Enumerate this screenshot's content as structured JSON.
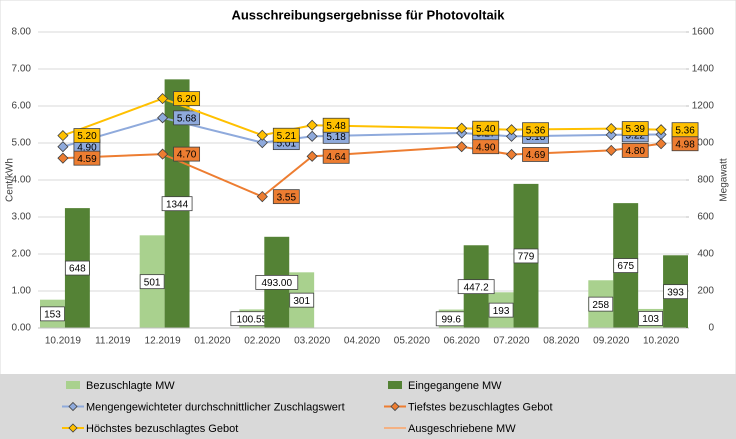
{
  "chart_data": {
    "type": "combo",
    "title": "Ausschreibungsergebnisse für Photovoltaik",
    "y_label": "Cent/kWh",
    "y2_label": "Megawatt",
    "connect_gaps": true,
    "categories": [
      "10.2019",
      "11.2019",
      "12.2019",
      "01.2020",
      "02.2020",
      "03.2020",
      "04.2020",
      "05.2020",
      "06.2020",
      "07.2020",
      "08.2020",
      "09.2020",
      "10.2020"
    ],
    "ylim": [
      0,
      8
    ],
    "yticks": [
      {
        "value": 0,
        "label": "0.00"
      },
      {
        "value": 1,
        "label": "1.00"
      },
      {
        "value": 2,
        "label": "2.00"
      },
      {
        "value": 3,
        "label": "3.00"
      },
      {
        "value": 4,
        "label": "4.00"
      },
      {
        "value": 5,
        "label": "5.00"
      },
      {
        "value": 6,
        "label": "6.00"
      },
      {
        "value": 7,
        "label": "7.00"
      },
      {
        "value": 8,
        "label": "8.00"
      }
    ],
    "y2lim": [
      0,
      1600
    ],
    "y2ticks": [
      0,
      200,
      400,
      600,
      800,
      1000,
      1200,
      1400,
      1600
    ],
    "series": [
      {
        "name": "Bezuschlagte MW",
        "type": "bar",
        "axis": "y2",
        "color": "#a9d18e",
        "values": [
          153,
          null,
          501,
          null,
          100.55,
          301,
          null,
          null,
          99.6,
          193,
          null,
          258,
          103
        ]
      },
      {
        "name": "Eingegangene MW",
        "type": "bar",
        "axis": "y2",
        "color": "#548235",
        "values": [
          648,
          null,
          1344,
          null,
          493,
          null,
          null,
          null,
          447.2,
          779,
          null,
          675,
          393
        ],
        "value_labels": [
          "648",
          null,
          "1344",
          null,
          "493.00",
          null,
          null,
          null,
          "447.2",
          "779",
          null,
          "675",
          "393"
        ]
      },
      {
        "name": "Mengengewichteter durchschnittlicher Zuschlagswert",
        "type": "line",
        "color": "#8faadc",
        "values": [
          4.9,
          null,
          5.68,
          null,
          5.01,
          5.18,
          null,
          null,
          5.27,
          5.18,
          null,
          5.22,
          5.23
        ],
        "value_labels": [
          "4.90",
          null,
          "5.68",
          null,
          "5.01",
          "5.18",
          null,
          null,
          "5.27",
          "5.18",
          null,
          "5.22",
          "5.23"
        ]
      },
      {
        "name": "Tiefstes bezuschlagtes Gebot",
        "type": "line",
        "color": "#ed7d31",
        "values": [
          4.59,
          null,
          4.7,
          null,
          3.55,
          4.64,
          null,
          null,
          4.9,
          4.69,
          null,
          4.8,
          4.98
        ],
        "value_labels": [
          "4.59",
          null,
          "4.70",
          null,
          "3.55",
          "4.64",
          null,
          null,
          "4.90",
          "4.69",
          null,
          "4.80",
          "4.98"
        ]
      },
      {
        "name": "Höchstes bezuschlagtes Gebot",
        "type": "line",
        "color": "#ffc000",
        "values": [
          5.2,
          null,
          6.2,
          null,
          5.21,
          5.48,
          null,
          null,
          5.4,
          5.36,
          null,
          5.39,
          5.36
        ],
        "value_labels": [
          "5.20",
          null,
          "6.20",
          null,
          "5.21",
          "5.48",
          null,
          null,
          "5.40",
          "5.36",
          null,
          "5.39",
          "5.36"
        ]
      },
      {
        "name": "Ausgeschriebene MW",
        "type": "line",
        "color": "#f4b183",
        "values": [
          null,
          null,
          null,
          null,
          null,
          null,
          null,
          null,
          null,
          null,
          null,
          null,
          null
        ]
      }
    ]
  }
}
